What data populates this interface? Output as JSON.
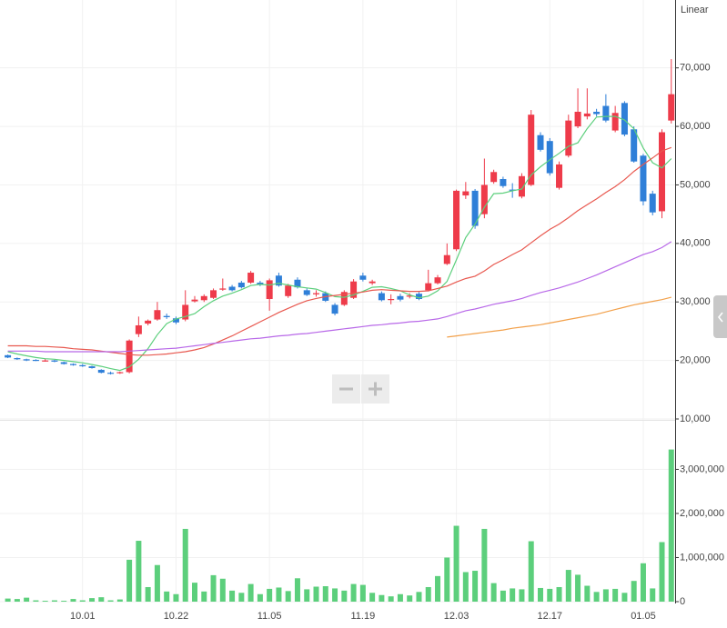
{
  "chart_data": [
    {
      "type": "candlestick",
      "scale_label": "Linear",
      "up_color": "#ee3b4a",
      "down_color": "#2f7fd8",
      "ylim": [
        10000,
        81600
      ],
      "yticks": [
        {
          "value": 10000,
          "label": "10,000"
        },
        {
          "value": 20000,
          "label": "20,000"
        },
        {
          "value": 30000,
          "label": "30,000"
        },
        {
          "value": 40000,
          "label": "40,000"
        },
        {
          "value": 50000,
          "label": "50,000"
        },
        {
          "value": 60000,
          "label": "60,000"
        },
        {
          "value": 70000,
          "label": "70,000"
        }
      ],
      "grid": true,
      "open": [
        20900,
        20400,
        20200,
        20100,
        19900,
        20000,
        19700,
        19400,
        19200,
        19000,
        18400,
        17900,
        17900,
        18000,
        24500,
        26300,
        27000,
        27600,
        27200,
        27000,
        30100,
        30300,
        30700,
        32100,
        32600,
        33300,
        33300,
        33300,
        30500,
        34500,
        31000,
        33800,
        32000,
        31300,
        31500,
        29500,
        29500,
        30700,
        34500,
        33200,
        31500,
        30400,
        31000,
        30900,
        31400,
        32000,
        33200,
        36500,
        39000,
        48200,
        49000,
        45000,
        50500,
        51000,
        49200,
        48000,
        50000,
        58500,
        57500,
        49500,
        55000,
        60000,
        61700,
        62500,
        63500,
        59300,
        64000,
        59500,
        55000,
        48500,
        45500,
        61000
      ],
      "high": [
        21000,
        20500,
        20300,
        20200,
        20300,
        20100,
        19800,
        19500,
        19400,
        19100,
        18500,
        18100,
        18100,
        23600,
        27500,
        27000,
        30000,
        28000,
        27500,
        32000,
        31000,
        31300,
        32300,
        34000,
        32900,
        33600,
        35300,
        33600,
        34000,
        35000,
        33100,
        34200,
        32300,
        32000,
        31800,
        29800,
        32000,
        33900,
        35000,
        33800,
        31800,
        31300,
        31400,
        31500,
        31700,
        35500,
        34600,
        40000,
        49200,
        50500,
        49300,
        54500,
        52600,
        51400,
        50300,
        52000,
        62800,
        59000,
        58000,
        54000,
        62000,
        66500,
        66500,
        63000,
        65500,
        63500,
        64300,
        60000,
        55300,
        49000,
        59500,
        71500
      ],
      "low": [
        20400,
        20100,
        19900,
        19900,
        19800,
        19700,
        19300,
        19100,
        18900,
        18600,
        17800,
        17600,
        17700,
        17800,
        24000,
        26000,
        26800,
        27100,
        26200,
        26700,
        29900,
        30000,
        30500,
        31900,
        31800,
        32300,
        33100,
        32700,
        28500,
        32600,
        30700,
        32300,
        31000,
        30900,
        30000,
        27700,
        29300,
        30500,
        33500,
        32900,
        30100,
        29600,
        30100,
        30600,
        30300,
        31800,
        33000,
        36300,
        38700,
        47600,
        42500,
        44300,
        50200,
        49500,
        47800,
        47700,
        49800,
        55700,
        51600,
        49200,
        54700,
        59700,
        61200,
        61700,
        60700,
        59000,
        58300,
        53800,
        46500,
        44800,
        44300,
        60500
      ],
      "close": [
        20500,
        20200,
        20000,
        20000,
        20000,
        19800,
        19400,
        19200,
        19000,
        18700,
        17900,
        17800,
        18000,
        23400,
        26000,
        26800,
        28600,
        27400,
        26500,
        29500,
        30400,
        31000,
        32000,
        32300,
        32000,
        32500,
        35000,
        33000,
        33700,
        32800,
        32800,
        32500,
        31200,
        31500,
        30200,
        28000,
        31700,
        33500,
        33800,
        33500,
        30300,
        30500,
        30400,
        31100,
        30500,
        33200,
        34200,
        38000,
        49000,
        48900,
        43000,
        50000,
        52200,
        49800,
        49000,
        51500,
        62000,
        56000,
        52000,
        53500,
        61000,
        62500,
        62200,
        62100,
        61000,
        62300,
        58600,
        54000,
        47200,
        45300,
        59000,
        65500
      ],
      "lines": [
        {
          "color": "#5ccf7c",
          "values": [
            21500,
            21100,
            20800,
            20500,
            20300,
            20200,
            20000,
            19800,
            19600,
            19300,
            19000,
            18600,
            18300,
            18900,
            20200,
            22000,
            24400,
            26300,
            27100,
            27500,
            28000,
            29200,
            30200,
            31000,
            31500,
            32100,
            32800,
            33000,
            32900,
            33200,
            32900,
            32600,
            32400,
            32200,
            31600,
            30900,
            30800,
            31200,
            31800,
            32500,
            32600,
            32300,
            31900,
            31200,
            30700,
            31000,
            31900,
            33500,
            37200,
            41000,
            43300,
            46200,
            48500,
            48600,
            49000,
            49300,
            51700,
            53100,
            54300,
            55400,
            56600,
            57200,
            59600,
            61600,
            61700,
            61700,
            61100,
            59600,
            56300,
            53800,
            52900,
            54500
          ]
        },
        {
          "color": "#e8584f",
          "values": [
            22500,
            22500,
            22500,
            22400,
            22400,
            22300,
            22200,
            22000,
            21900,
            21800,
            21600,
            21400,
            21200,
            21000,
            20900,
            20900,
            21000,
            21100,
            21300,
            21500,
            21800,
            22200,
            22800,
            23500,
            24200,
            25000,
            25800,
            26600,
            27400,
            28200,
            28900,
            29600,
            30200,
            30600,
            30900,
            31100,
            31300,
            31500,
            31700,
            32000,
            32100,
            32000,
            31900,
            31800,
            31800,
            31900,
            32300,
            32700,
            33400,
            34000,
            34400,
            35300,
            36400,
            37200,
            38100,
            38900,
            40100,
            41300,
            42400,
            43300,
            44400,
            45600,
            46600,
            47600,
            48700,
            49700,
            50900,
            52300,
            53500,
            54600,
            55800,
            56400
          ]
        },
        {
          "color": "#b868e8",
          "values": [
            21600,
            21600,
            21600,
            21600,
            21500,
            21500,
            21500,
            21500,
            21500,
            21500,
            21500,
            21500,
            21500,
            21600,
            21700,
            21800,
            21900,
            22000,
            22100,
            22300,
            22500,
            22700,
            22900,
            23100,
            23300,
            23500,
            23700,
            23800,
            24000,
            24200,
            24300,
            24500,
            24600,
            24800,
            25000,
            25200,
            25400,
            25600,
            25800,
            26000,
            26100,
            26300,
            26400,
            26600,
            26700,
            26900,
            27100,
            27500,
            28000,
            28500,
            28800,
            29200,
            29600,
            29900,
            30200,
            30600,
            31100,
            31600,
            32000,
            32400,
            32900,
            33400,
            34000,
            34600,
            35300,
            36000,
            36700,
            37400,
            38100,
            38600,
            39300,
            40300
          ]
        },
        {
          "color": "#f2a04a",
          "values": [
            null,
            null,
            null,
            null,
            null,
            null,
            null,
            null,
            null,
            null,
            null,
            null,
            null,
            null,
            null,
            null,
            null,
            null,
            null,
            null,
            null,
            null,
            null,
            null,
            null,
            null,
            null,
            null,
            null,
            null,
            null,
            null,
            null,
            null,
            null,
            null,
            null,
            null,
            null,
            null,
            null,
            null,
            null,
            null,
            null,
            null,
            null,
            24000,
            24200,
            24400,
            24600,
            24800,
            25000,
            25200,
            25500,
            25700,
            25900,
            26100,
            26400,
            26700,
            27000,
            27300,
            27600,
            27900,
            28300,
            28700,
            29100,
            29500,
            29800,
            30100,
            30400,
            30800
          ]
        }
      ]
    },
    {
      "type": "bar",
      "color": "#5ccf7c",
      "ylim": [
        0,
        4060000
      ],
      "yticks": [
        0,
        {
          "value": 1000000,
          "label": "1,000,000"
        },
        {
          "value": 2000000,
          "label": "2,000,000"
        },
        {
          "value": 3000000,
          "label": "3,000,000"
        }
      ],
      "grid": true,
      "categories": [
        null,
        null,
        null,
        null,
        null,
        null,
        null,
        null,
        "10.01",
        null,
        null,
        null,
        null,
        null,
        null,
        null,
        null,
        null,
        "10.22",
        null,
        null,
        null,
        null,
        null,
        null,
        null,
        null,
        null,
        "11.05",
        null,
        null,
        null,
        null,
        null,
        null,
        null,
        null,
        null,
        "11.19",
        null,
        null,
        null,
        null,
        null,
        null,
        null,
        null,
        null,
        "12.03",
        null,
        null,
        null,
        null,
        null,
        null,
        null,
        null,
        null,
        "12.17",
        null,
        null,
        null,
        null,
        null,
        null,
        null,
        null,
        null,
        "01.05",
        null,
        null,
        null
      ],
      "values": [
        70000,
        60000,
        90000,
        30000,
        20000,
        30000,
        20000,
        60000,
        30000,
        80000,
        100000,
        30000,
        50000,
        950000,
        1380000,
        330000,
        830000,
        230000,
        170000,
        1650000,
        430000,
        230000,
        600000,
        520000,
        250000,
        200000,
        400000,
        170000,
        290000,
        320000,
        240000,
        530000,
        280000,
        340000,
        350000,
        300000,
        250000,
        400000,
        380000,
        200000,
        150000,
        120000,
        170000,
        140000,
        220000,
        330000,
        580000,
        1000000,
        1720000,
        670000,
        700000,
        1650000,
        420000,
        250000,
        300000,
        280000,
        1370000,
        310000,
        290000,
        330000,
        720000,
        610000,
        360000,
        220000,
        280000,
        290000,
        200000,
        470000,
        870000,
        300000,
        1350000,
        3450000
      ]
    }
  ]
}
